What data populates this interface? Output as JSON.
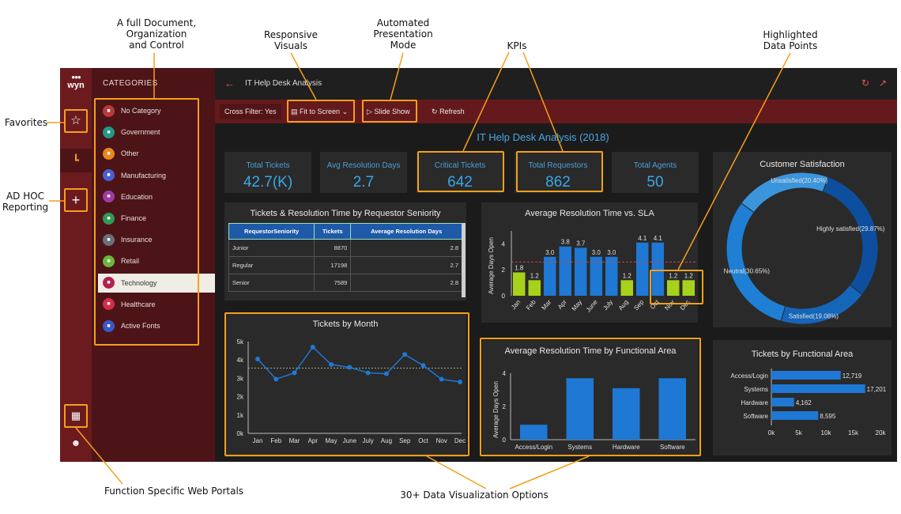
{
  "annotations": {
    "document_control": [
      "A full Document,",
      "Organization",
      "and Control"
    ],
    "responsive_visuals": [
      "Responsive",
      "Visuals"
    ],
    "presentation_mode": [
      "Automated",
      "Presentation",
      "Mode"
    ],
    "kpis": [
      "KPIs"
    ],
    "highlighted_points": [
      "Highlighted",
      "Data Points"
    ],
    "favorites": [
      "Favorites"
    ],
    "ad_hoc": [
      "AD HOC",
      "Reporting"
    ],
    "web_portals": [
      "Function Specific Web Portals"
    ],
    "viz_options": [
      "30+ Data Visualization Options"
    ]
  },
  "sidebar": {
    "logo_text": "wyn",
    "title": "CATEGORIES",
    "items": [
      {
        "label": "No Category",
        "color": "#b83a3a",
        "icon": "folder-icon"
      },
      {
        "label": "Government",
        "color": "#1f9a86",
        "icon": "building-icon"
      },
      {
        "label": "Other",
        "color": "#e8881c",
        "icon": "folder-icon"
      },
      {
        "label": "Manufacturing",
        "color": "#4a5fd0",
        "icon": "factory-icon"
      },
      {
        "label": "Education",
        "color": "#a23aa8",
        "icon": "book-icon"
      },
      {
        "label": "Finance",
        "color": "#2d9a55",
        "icon": "money-icon"
      },
      {
        "label": "Insurance",
        "color": "#6b6f7a",
        "icon": "lock-icon"
      },
      {
        "label": "Retail",
        "color": "#6bb83a",
        "icon": "cart-icon"
      },
      {
        "label": "Technology",
        "color": "#b0224e",
        "icon": "cloud-icon",
        "active": true
      },
      {
        "label": "Healthcare",
        "color": "#d62c4a",
        "icon": "medical-icon"
      },
      {
        "label": "Active Fonts",
        "color": "#3a58c8",
        "icon": "chart-icon"
      }
    ]
  },
  "header": {
    "title": "IT Help Desk Analysis",
    "cross_filter": "Cross Filter: Yes",
    "fit_to_screen": "Fit to Screen",
    "slide_show": "Slide Show",
    "refresh": "Refresh"
  },
  "dashboard": {
    "title": "IT Help Desk Analysis (2018)",
    "kpis": [
      {
        "title": "Total Tickets",
        "value": "42.7(K)"
      },
      {
        "title": "Avg Resolution Days",
        "value": "2.7"
      },
      {
        "title": "Critical Tickets",
        "value": "642"
      },
      {
        "title": "Total Requestors",
        "value": "862"
      },
      {
        "title": "Total Agents",
        "value": "50"
      }
    ],
    "table": {
      "title": "Tickets & Resolution Time by Requestor Seniority",
      "headers": [
        "RequestorSeniority",
        "Tickets",
        "Average Resolution Days"
      ],
      "rows": [
        [
          "Junior",
          "8870",
          "2.8"
        ],
        [
          "Regular",
          "17198",
          "2.7"
        ],
        [
          "Senior",
          "7589",
          "2.8"
        ]
      ]
    },
    "panel_titles": {
      "sla": "Average Resolution Time vs. SLA",
      "satisfaction": "Customer Satisfaction",
      "month": "Tickets by Month",
      "functional_time": "Average Resolution Time by Functional Area",
      "functional_tickets": "Tickets by Functional Area"
    }
  },
  "colors": {
    "accent_orange": "#f4a01b",
    "bar_blue": "#1e78d4",
    "bar_green": "#a6d21c",
    "kpi_blue": "#3aa7e6"
  },
  "chart_data": [
    {
      "type": "bar",
      "title": "Average Resolution Time vs. SLA",
      "ylabel": "Average Days Open",
      "categories": [
        "Jan",
        "Feb",
        "Mar",
        "Apr",
        "May",
        "June",
        "July",
        "Aug",
        "Sep",
        "Oct",
        "Nov",
        "Dec"
      ],
      "values": [
        1.8,
        1.2,
        3.0,
        3.8,
        3.7,
        3.0,
        3.0,
        1.2,
        4.1,
        4.1,
        1.2,
        1.2
      ],
      "data_labels": [
        "1.8",
        "1.2",
        "3.0",
        "3.8",
        "3.7",
        "3.0",
        "3.0",
        "1.2",
        "4.1",
        "4.1",
        "1.2",
        "1.2"
      ],
      "highlighted": [
        true,
        true,
        false,
        false,
        false,
        false,
        false,
        true,
        false,
        false,
        true,
        true
      ],
      "sla": 2.6,
      "ylim": [
        0,
        5
      ],
      "yticks": [
        "0",
        "2",
        "4"
      ]
    },
    {
      "type": "pie",
      "title": "Customer Satisfaction",
      "slices": [
        {
          "label": "Highly satisfied(29.87%)",
          "value": 29.87,
          "color": "#0d4f9e"
        },
        {
          "label": "Satisfied(19.08%)",
          "value": 19.08,
          "color": "#1565b8"
        },
        {
          "label": "Neutral(30.65%)",
          "value": 30.65,
          "color": "#1e7fd4"
        },
        {
          "label": "Unsatisfied(20.40%)",
          "value": 20.4,
          "color": "#3b95dd"
        }
      ]
    },
    {
      "type": "line",
      "title": "Tickets by Month",
      "categories": [
        "Jan",
        "Feb",
        "Mar",
        "Apr",
        "May",
        "June",
        "July",
        "Aug",
        "Sep",
        "Oct",
        "Nov",
        "Dec"
      ],
      "values": [
        4050,
        2950,
        3300,
        4700,
        3750,
        3600,
        3300,
        3250,
        4300,
        3700,
        2950,
        2800
      ],
      "average": 3560,
      "ylim": [
        0,
        5000
      ],
      "yticks": [
        "0k",
        "1k",
        "2k",
        "3k",
        "4k",
        "5k"
      ]
    },
    {
      "type": "bar",
      "title": "Average Resolution Time by Functional Area",
      "ylabel": "Average Days Open",
      "categories": [
        "Access/Login",
        "Systems",
        "Hardware",
        "Software"
      ],
      "values": [
        0.9,
        3.7,
        3.1,
        3.7
      ],
      "ylim": [
        0,
        4
      ],
      "yticks": [
        "0",
        "2",
        "4"
      ]
    },
    {
      "type": "bar",
      "orientation": "horizontal",
      "title": "Tickets by Functional Area",
      "categories": [
        "Access/Login",
        "Systems",
        "Hardware",
        "Software"
      ],
      "values": [
        12719,
        17201,
        4162,
        8595
      ],
      "data_labels": [
        "12,719",
        "17,201",
        "4,162",
        "8,595"
      ],
      "xlim": [
        0,
        20000
      ],
      "xticks": [
        "0k",
        "5k",
        "10k",
        "15k",
        "20k"
      ]
    }
  ]
}
